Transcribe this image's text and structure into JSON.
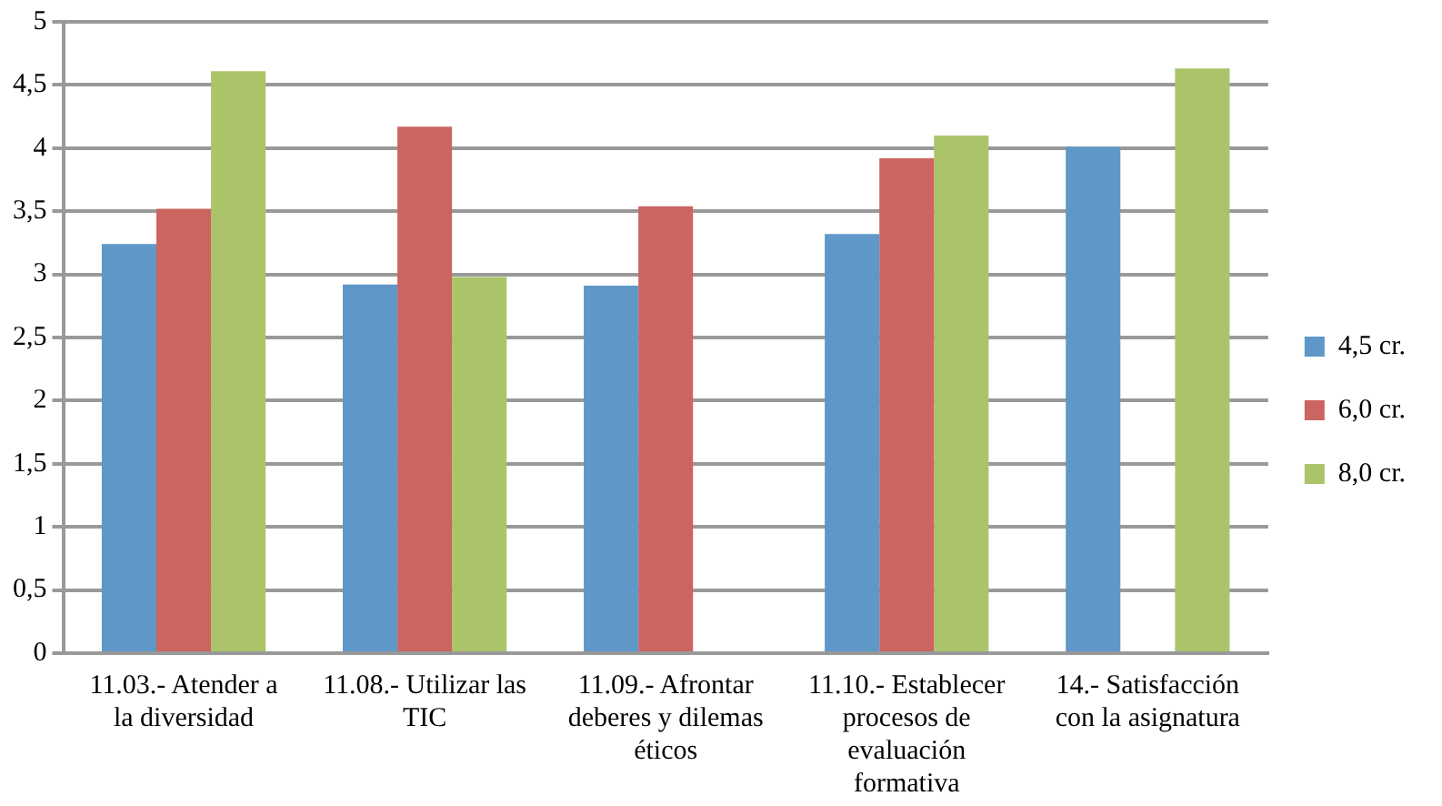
{
  "chart_data": {
    "type": "bar",
    "categories": [
      "11.03.- Atender a la diversidad",
      "11.08.- Utilizar las TIC",
      "11.09.- Afrontar deberes y dilemas éticos",
      "11.10.- Establecer procesos de evaluación formativa",
      "14.- Satisfacción con la asignatura"
    ],
    "series": [
      {
        "name": "4,5 cr.",
        "color": "#5f97c9",
        "values": [
          3.24,
          2.92,
          2.91,
          3.32,
          4.01
        ]
      },
      {
        "name": "6,0 cr.",
        "color": "#cc6560",
        "values": [
          3.52,
          4.17,
          3.54,
          3.92,
          null
        ]
      },
      {
        "name": "8,0 cr.",
        "color": "#abc46a",
        "values": [
          4.61,
          2.98,
          null,
          4.1,
          4.63
        ]
      }
    ],
    "ylim": [
      0,
      5
    ],
    "yticks": [
      {
        "value": 0,
        "label": "0"
      },
      {
        "value": 0.5,
        "label": "0,5"
      },
      {
        "value": 1,
        "label": "1"
      },
      {
        "value": 1.5,
        "label": "1,5"
      },
      {
        "value": 2,
        "label": "2"
      },
      {
        "value": 2.5,
        "label": "2,5"
      },
      {
        "value": 3,
        "label": "3"
      },
      {
        "value": 3.5,
        "label": "3,5"
      },
      {
        "value": 4,
        "label": "4"
      },
      {
        "value": 4.5,
        "label": "4,5"
      },
      {
        "value": 5,
        "label": "5"
      }
    ],
    "grid": "y",
    "legend": "right"
  }
}
